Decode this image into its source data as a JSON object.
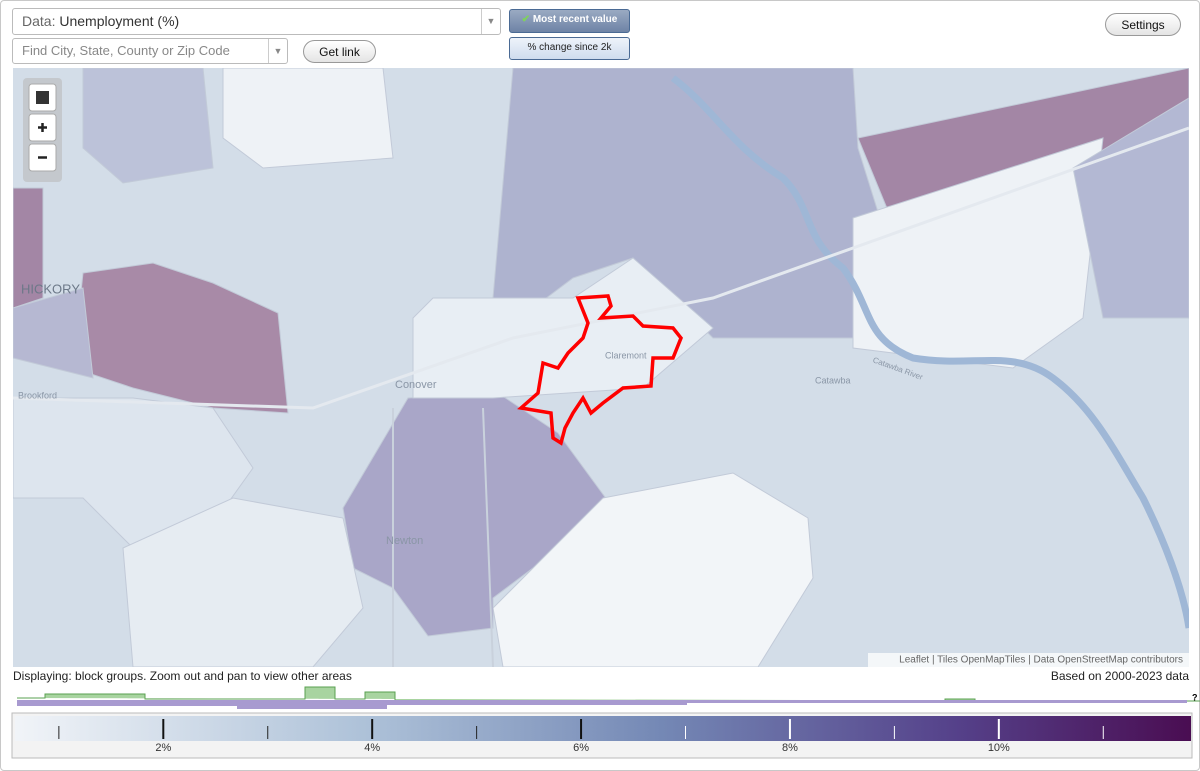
{
  "controls": {
    "data_label": "Data:",
    "data_value": "Unemployment (%)",
    "search_placeholder": "Find City, State, County or Zip Code",
    "get_link": "Get link",
    "most_recent": "Most recent value",
    "pct_change": "% change since 2k",
    "settings": "Settings"
  },
  "map": {
    "labels": [
      "HICKORY",
      "Brookford",
      "Conover",
      "Claremont",
      "Catawba",
      "Catawba River",
      "Newton"
    ],
    "attribution": "Leaflet | Tiles OpenMapTiles | Data OpenStreetMap contributors"
  },
  "status": {
    "displaying": "Displaying: block groups. Zoom out and pan to view other areas",
    "based_on": "Based on 2000-2023 data"
  },
  "legend": {
    "range": [
      0.58,
      11.84
    ],
    "ticks": [
      {
        "value": 2,
        "label": "2%"
      },
      {
        "value": 4,
        "label": "4%"
      },
      {
        "value": 6,
        "label": "6%"
      },
      {
        "value": 8,
        "label": "8%"
      },
      {
        "value": 10,
        "label": "10%"
      }
    ],
    "minor_ticks": [
      1,
      3,
      5,
      7,
      9,
      11
    ],
    "help": "?"
  }
}
